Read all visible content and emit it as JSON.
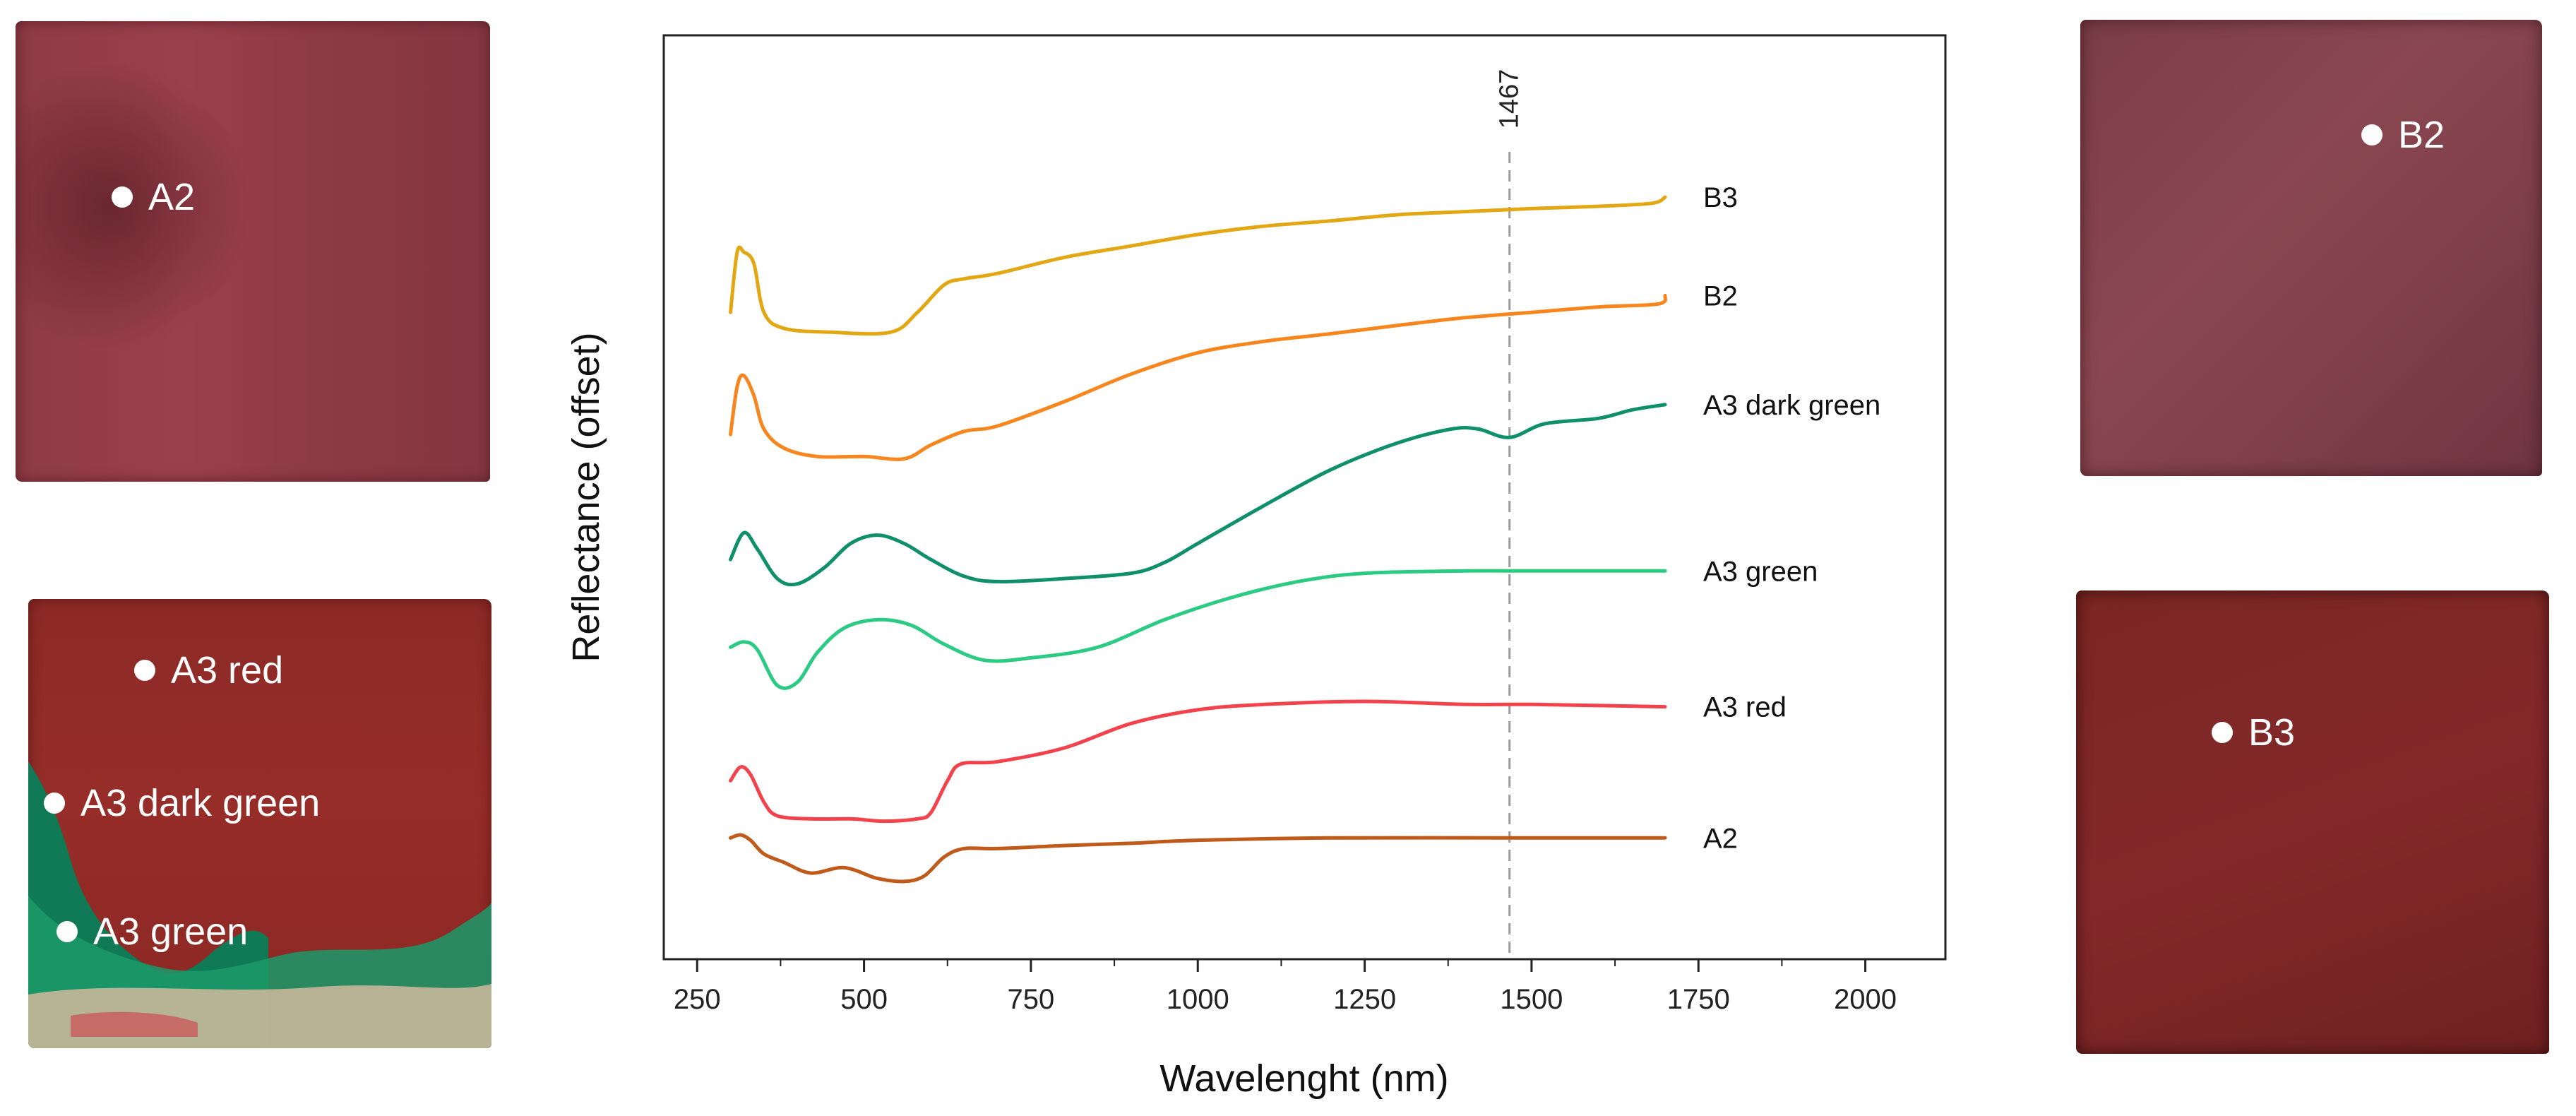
{
  "photos": {
    "a2": {
      "marker_label": "A2"
    },
    "a3": {
      "markers": [
        {
          "label": "A3 red"
        },
        {
          "label": "A3 dark green"
        },
        {
          "label": "A3 green"
        }
      ]
    },
    "b2": {
      "marker_label": "B2"
    },
    "b3": {
      "marker_label": "B3"
    }
  },
  "colors": {
    "B3": "#E2A712",
    "B2": "#F7861F",
    "A3 dark green": "#0F8F6A",
    "A3 green": "#2CCB83",
    "A3 red": "#F2424C",
    "A2": "#BF5A1A"
  },
  "chart_data": {
    "type": "line",
    "title": "",
    "xlabel": "Wavelenght (nm)",
    "ylabel": "Reflectance (offset)",
    "xlim": [
      200,
      2120
    ],
    "ylim": [
      0,
      100
    ],
    "xticks": [
      250,
      500,
      750,
      1000,
      1250,
      1500,
      1750,
      2000
    ],
    "yticks_shown": false,
    "annotation": {
      "type": "vline",
      "x": 1467,
      "label": "1467",
      "style": "dashed"
    },
    "series": [
      {
        "name": "B3",
        "label": "B3",
        "points": [
          [
            300,
            78.5
          ],
          [
            310,
            86.4
          ],
          [
            320,
            86.4
          ],
          [
            335,
            84.9
          ],
          [
            350,
            78.5
          ],
          [
            380,
            76.4
          ],
          [
            450,
            75.9
          ],
          [
            540,
            75.9
          ],
          [
            580,
            78.5
          ],
          [
            620,
            82.1
          ],
          [
            650,
            82.9
          ],
          [
            700,
            83.6
          ],
          [
            800,
            85.7
          ],
          [
            900,
            87.2
          ],
          [
            1000,
            88.7
          ],
          [
            1100,
            89.8
          ],
          [
            1200,
            90.5
          ],
          [
            1300,
            91.3
          ],
          [
            1400,
            91.7
          ],
          [
            1500,
            92.1
          ],
          [
            1600,
            92.4
          ],
          [
            1680,
            92.8
          ],
          [
            1700,
            93.6
          ]
        ]
      },
      {
        "name": "B2",
        "label": "B2",
        "points": [
          [
            300,
            62.5
          ],
          [
            310,
            68.8
          ],
          [
            320,
            70.2
          ],
          [
            335,
            67.6
          ],
          [
            350,
            63.2
          ],
          [
            380,
            60.7
          ],
          [
            430,
            59.6
          ],
          [
            500,
            59.6
          ],
          [
            560,
            59.3
          ],
          [
            600,
            61.1
          ],
          [
            650,
            62.9
          ],
          [
            700,
            63.6
          ],
          [
            800,
            66.8
          ],
          [
            900,
            70.4
          ],
          [
            1000,
            73.2
          ],
          [
            1100,
            74.7
          ],
          [
            1200,
            75.7
          ],
          [
            1300,
            76.8
          ],
          [
            1400,
            77.8
          ],
          [
            1500,
            78.5
          ],
          [
            1600,
            79.2
          ],
          [
            1690,
            79.6
          ],
          [
            1700,
            80.7
          ]
        ]
      },
      {
        "name": "A3 dark green",
        "label": "A3 dark green",
        "points": [
          [
            300,
            46.1
          ],
          [
            320,
            49.6
          ],
          [
            340,
            47.5
          ],
          [
            370,
            43.6
          ],
          [
            400,
            42.9
          ],
          [
            440,
            45.0
          ],
          [
            480,
            48.2
          ],
          [
            520,
            49.3
          ],
          [
            560,
            48.2
          ],
          [
            600,
            46.1
          ],
          [
            650,
            43.9
          ],
          [
            700,
            43.2
          ],
          [
            800,
            43.6
          ],
          [
            900,
            44.3
          ],
          [
            950,
            45.7
          ],
          [
            1000,
            48.2
          ],
          [
            1100,
            53.2
          ],
          [
            1200,
            57.9
          ],
          [
            1300,
            61.4
          ],
          [
            1380,
            63.2
          ],
          [
            1420,
            63.2
          ],
          [
            1467,
            62.1
          ],
          [
            1520,
            63.9
          ],
          [
            1600,
            64.6
          ],
          [
            1650,
            65.7
          ],
          [
            1700,
            66.4
          ]
        ]
      },
      {
        "name": "A3 green",
        "label": "A3 green",
        "points": [
          [
            300,
            34.6
          ],
          [
            320,
            35.3
          ],
          [
            340,
            34.3
          ],
          [
            370,
            29.6
          ],
          [
            400,
            30.0
          ],
          [
            430,
            33.9
          ],
          [
            470,
            37.1
          ],
          [
            520,
            38.2
          ],
          [
            570,
            37.5
          ],
          [
            620,
            35.0
          ],
          [
            680,
            32.9
          ],
          [
            750,
            33.2
          ],
          [
            850,
            34.6
          ],
          [
            950,
            38.2
          ],
          [
            1050,
            41.1
          ],
          [
            1150,
            43.2
          ],
          [
            1250,
            44.3
          ],
          [
            1400,
            44.6
          ],
          [
            1467,
            44.6
          ],
          [
            1550,
            44.6
          ],
          [
            1700,
            44.6
          ]
        ]
      },
      {
        "name": "A3 red",
        "label": "A3 red",
        "points": [
          [
            300,
            17.1
          ],
          [
            315,
            18.9
          ],
          [
            330,
            17.9
          ],
          [
            350,
            14.3
          ],
          [
            370,
            12.5
          ],
          [
            420,
            12.1
          ],
          [
            480,
            12.1
          ],
          [
            530,
            11.8
          ],
          [
            580,
            12.1
          ],
          [
            600,
            12.9
          ],
          [
            625,
            17.1
          ],
          [
            645,
            19.3
          ],
          [
            700,
            19.6
          ],
          [
            800,
            21.4
          ],
          [
            900,
            24.6
          ],
          [
            1000,
            26.4
          ],
          [
            1100,
            27.1
          ],
          [
            1250,
            27.5
          ],
          [
            1400,
            27.1
          ],
          [
            1500,
            27.1
          ],
          [
            1700,
            26.8
          ]
        ]
      },
      {
        "name": "A2",
        "label": "A2",
        "points": [
          [
            300,
            9.6
          ],
          [
            315,
            10.0
          ],
          [
            330,
            9.3
          ],
          [
            350,
            7.5
          ],
          [
            380,
            6.4
          ],
          [
            420,
            5.0
          ],
          [
            470,
            5.7
          ],
          [
            520,
            4.3
          ],
          [
            560,
            3.9
          ],
          [
            590,
            4.6
          ],
          [
            620,
            7.1
          ],
          [
            650,
            8.2
          ],
          [
            700,
            8.2
          ],
          [
            800,
            8.6
          ],
          [
            900,
            8.9
          ],
          [
            1000,
            9.3
          ],
          [
            1200,
            9.6
          ],
          [
            1467,
            9.6
          ],
          [
            1700,
            9.6
          ]
        ]
      }
    ]
  }
}
